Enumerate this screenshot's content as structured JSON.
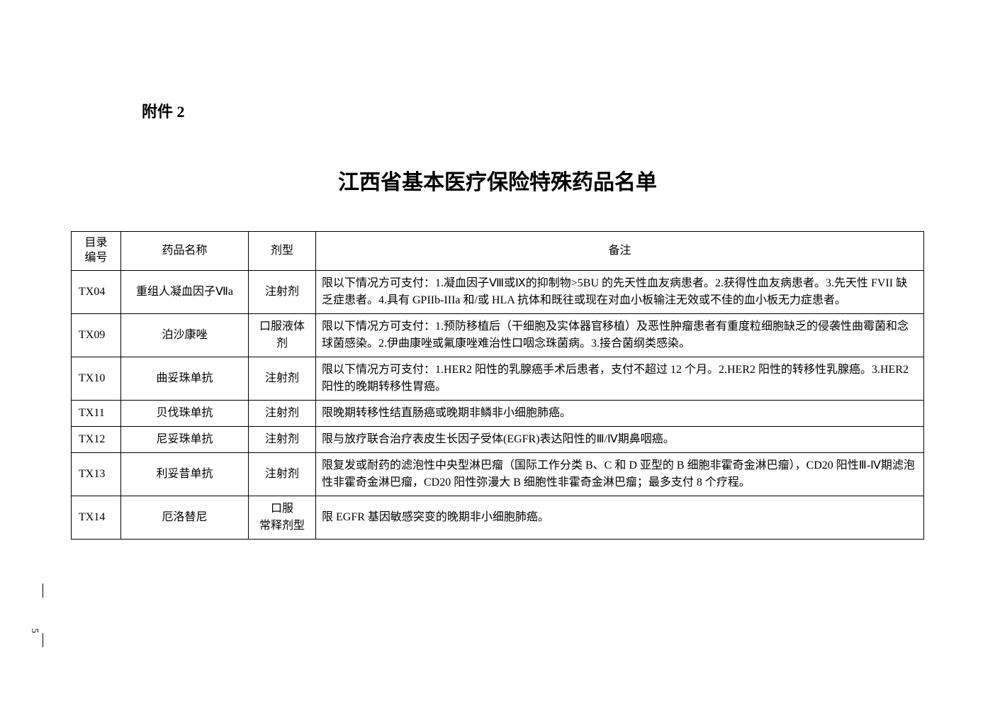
{
  "attachment_label": "附件 2",
  "title": "江西省基本医疗保险特殊药品名单",
  "page_number": "5",
  "headers": {
    "code": "目录编号",
    "name": "药品名称",
    "form": "剂型",
    "note": "备注"
  },
  "rows": [
    {
      "code": "TX04",
      "name": "重组人凝血因子Ⅶa",
      "form": "注射剂",
      "note": "限以下情况方可支付：1.凝血因子Ⅷ或Ⅸ的抑制物>5BU 的先天性血友病患者。2.获得性血友病患者。3.先天性 FVII 缺乏症患者。4.具有 GPIIb-IIIa 和/或 HLA 抗体和既往或现在对血小板输注无效或不佳的血小板无力症患者。"
    },
    {
      "code": "TX09",
      "name": "泊沙康唑",
      "form": "口服液体剂",
      "note": "限以下情况方可支付：1.预防移植后（干细胞及实体器官移植）及恶性肿瘤患者有重度粒细胞缺乏的侵袭性曲霉菌和念球菌感染。2.伊曲康唑或氟康唑难治性口咽念珠菌病。3.接合菌纲类感染。"
    },
    {
      "code": "TX10",
      "name": "曲妥珠单抗",
      "form": "注射剂",
      "note": "限以下情况方可支付：1.HER2 阳性的乳腺癌手术后患者，支付不超过 12 个月。2.HER2 阳性的转移性乳腺癌。3.HER2 阳性的晚期转移性胃癌。"
    },
    {
      "code": "TX11",
      "name": "贝伐珠单抗",
      "form": "注射剂",
      "note": "限晚期转移性结直肠癌或晚期非鳞非小细胞肺癌。"
    },
    {
      "code": "TX12",
      "name": "尼妥珠单抗",
      "form": "注射剂",
      "note": "限与放疗联合治疗表皮生长因子受体(EGFR)表达阳性的Ⅲ/Ⅳ期鼻咽癌。"
    },
    {
      "code": "TX13",
      "name": "利妥昔单抗",
      "form": "注射剂",
      "note": "限复发或耐药的滤泡性中央型淋巴瘤（国际工作分类 B、C 和 D 亚型的 B 细胞非霍奇金淋巴瘤），CD20 阳性Ⅲ-Ⅳ期滤泡性非霍奇金淋巴瘤，CD20 阳性弥漫大 B 细胞性非霍奇金淋巴瘤；最多支付 8 个疗程。"
    },
    {
      "code": "TX14",
      "name": "厄洛替尼",
      "form": "口服常释剂型",
      "note": "限 EGFR 基因敏感突变的晚期非小细胞肺癌。"
    }
  ]
}
